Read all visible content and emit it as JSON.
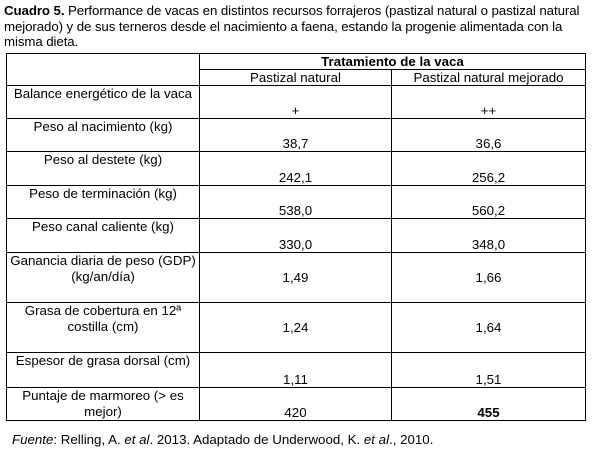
{
  "caption": {
    "prefix": "Cuadro 5.",
    "text": " Performance de vacas en distintos recursos forrajeros (pastizal natural o pastizal natural mejorado) y de sus terneros desde el nacimiento a faena, estando la progenie alimentada con la misma dieta."
  },
  "table": {
    "group_header": "Tratamiento de la vaca",
    "columns": [
      "Pastizal natural",
      "Pastizal natural mejorado"
    ],
    "rows": [
      {
        "label": "Balance energético de la vaca",
        "v1": "+",
        "v2": "++"
      },
      {
        "label": "Peso al nacimiento (kg)",
        "v1": "38,7",
        "v2": "36,6"
      },
      {
        "label": "Peso al destete (kg)",
        "v1": "242,1",
        "v2": "256,2"
      },
      {
        "label": "Peso de terminación (kg)",
        "v1": "538,0",
        "v2": "560,2"
      },
      {
        "label": "Peso canal caliente (kg)",
        "v1": "330,0",
        "v2": "348,0"
      },
      {
        "label": "Ganancia diaria de peso (GDP) (kg/an/día)",
        "v1": "1,49",
        "v2": "1,66"
      },
      {
        "label": "Grasa de cobertura en 12ª costilla (cm)",
        "v1": "1,24",
        "v2": "1,64"
      },
      {
        "label": "Espesor de grasa dorsal (cm)",
        "v1": "1,11",
        "v2": "1,51"
      },
      {
        "label": "Puntaje de marmoreo (> es mejor)",
        "v1": "420",
        "v2": "455"
      }
    ]
  },
  "source": {
    "label": "Fuente",
    "text1": ": Relling, A. ",
    "etal1": "et al",
    "text2": ". 2013. Adaptado de Underwood, K. ",
    "etal2": "et al",
    "text3": "., 2010."
  }
}
